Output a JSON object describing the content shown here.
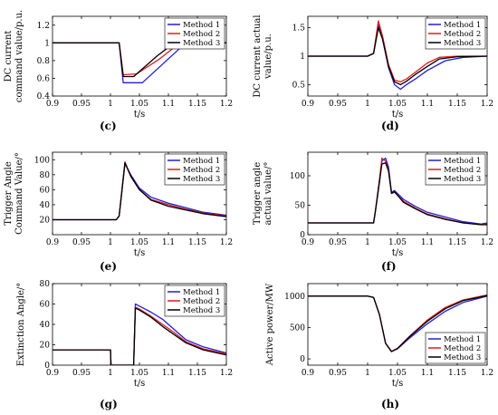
{
  "chart_data": [
    {
      "type": "line",
      "caption": "(c)",
      "ylabel": [
        "DC current",
        "command value/p.u."
      ],
      "xlabel": "t/s",
      "xlim": [
        0.9,
        1.2
      ],
      "ylim": [
        0.4,
        1.3
      ],
      "xticks": [
        "0.9",
        "0.95",
        "1",
        "1.05",
        "1.1",
        "1.15",
        "1.2"
      ],
      "yticks": [
        "0.4",
        "0.6",
        "0.8",
        "1",
        "1.2"
      ],
      "legend": "top-right",
      "series": [
        {
          "name": "Method 1",
          "color": "#1f1fd6",
          "x": [
            0.9,
            1.015,
            1.022,
            1.055,
            1.13,
            1.2
          ],
          "y": [
            1,
            1,
            0.55,
            0.55,
            1,
            1
          ]
        },
        {
          "name": "Method 2",
          "color": "#e01b1b",
          "x": [
            0.9,
            1.015,
            1.022,
            1.045,
            1.085,
            1.12,
            1.2
          ],
          "y": [
            1,
            1,
            0.64,
            0.65,
            0.82,
            1,
            1
          ]
        },
        {
          "name": "Method 3",
          "color": "#000000",
          "x": [
            0.9,
            1.015,
            1.022,
            1.04,
            1.08,
            1.11,
            1.2
          ],
          "y": [
            1,
            1,
            0.62,
            0.62,
            0.85,
            1,
            1
          ]
        }
      ]
    },
    {
      "type": "line",
      "caption": "(d)",
      "ylabel": [
        "DC current actual",
        "value/p.u."
      ],
      "xlabel": "t/s",
      "xlim": [
        0.9,
        1.2
      ],
      "ylim": [
        0.3,
        1.7
      ],
      "xticks": [
        "0.9",
        "0.95",
        "1",
        "1.05",
        "1.1",
        "1.15",
        "1.2"
      ],
      "yticks": [
        "0.5",
        "1",
        "1.5"
      ],
      "legend": "top-right",
      "series": [
        {
          "name": "Method 1",
          "color": "#1f1fd6",
          "x": [
            0.9,
            1.0,
            1.01,
            1.018,
            1.025,
            1.035,
            1.045,
            1.055,
            1.065,
            1.08,
            1.1,
            1.13,
            1.16,
            1.2
          ],
          "y": [
            1,
            1,
            1.05,
            1.55,
            1.3,
            0.8,
            0.5,
            0.42,
            0.5,
            0.6,
            0.75,
            0.92,
            0.98,
            1
          ]
        },
        {
          "name": "Method 2",
          "color": "#e01b1b",
          "x": [
            0.9,
            1.0,
            1.01,
            1.018,
            1.025,
            1.035,
            1.045,
            1.055,
            1.065,
            1.08,
            1.1,
            1.12,
            1.15,
            1.2
          ],
          "y": [
            1,
            1,
            1.05,
            1.62,
            1.35,
            0.85,
            0.58,
            0.55,
            0.6,
            0.72,
            0.88,
            0.98,
            1.0,
            1
          ]
        },
        {
          "name": "Method 3",
          "color": "#000000",
          "x": [
            0.9,
            1.0,
            1.01,
            1.018,
            1.025,
            1.035,
            1.045,
            1.055,
            1.065,
            1.08,
            1.1,
            1.12,
            1.15,
            1.2
          ],
          "y": [
            1,
            1,
            1.05,
            1.5,
            1.3,
            0.82,
            0.55,
            0.5,
            0.56,
            0.68,
            0.82,
            0.95,
            0.99,
            1
          ]
        }
      ]
    },
    {
      "type": "line",
      "caption": "(e)",
      "ylabel": [
        "Trigger Angle",
        "Command Value/°"
      ],
      "xlabel": "t/s",
      "xlim": [
        0.9,
        1.2
      ],
      "ylim": [
        0,
        110
      ],
      "xticks": [
        "0.9",
        "0.95",
        "1",
        "1.05",
        "1.1",
        "1.15",
        "1.2"
      ],
      "yticks": [
        "20",
        "40",
        "60",
        "80",
        "100"
      ],
      "legend": "top-right",
      "series": [
        {
          "name": "Method 1",
          "color": "#1f1fd6",
          "x": [
            0.9,
            1.01,
            1.015,
            1.02,
            1.025,
            1.035,
            1.05,
            1.07,
            1.1,
            1.13,
            1.16,
            1.2
          ],
          "y": [
            20,
            20,
            25,
            60,
            95,
            80,
            62,
            50,
            42,
            36,
            30,
            26
          ]
        },
        {
          "name": "Method 2",
          "color": "#e01b1b",
          "x": [
            0.9,
            1.01,
            1.015,
            1.02,
            1.025,
            1.035,
            1.05,
            1.07,
            1.1,
            1.13,
            1.16,
            1.2
          ],
          "y": [
            20,
            20,
            25,
            62,
            97,
            78,
            60,
            47,
            40,
            34,
            29,
            25
          ]
        },
        {
          "name": "Method 3",
          "color": "#000000",
          "x": [
            0.9,
            1.01,
            1.015,
            1.02,
            1.025,
            1.035,
            1.05,
            1.07,
            1.1,
            1.13,
            1.16,
            1.2
          ],
          "y": [
            20,
            20,
            25,
            60,
            96,
            78,
            60,
            46,
            38,
            33,
            28,
            24
          ]
        }
      ]
    },
    {
      "type": "line",
      "caption": "(f)",
      "ylabel": [
        "Trigger angle",
        "actual value/°"
      ],
      "xlabel": "t/s",
      "xlim": [
        0.9,
        1.2
      ],
      "ylim": [
        0,
        140
      ],
      "xticks": [
        "0.9",
        "0.95",
        "1",
        "1.05",
        "1.1",
        "1.15",
        "1.2"
      ],
      "yticks": [
        "0",
        "50",
        "100"
      ],
      "legend": "top-right",
      "series": [
        {
          "name": "Method 1",
          "color": "#1f1fd6",
          "x": [
            0.9,
            1.01,
            1.013,
            1.02,
            1.024,
            1.03,
            1.035,
            1.04,
            1.045,
            1.06,
            1.08,
            1.1,
            1.13,
            1.16,
            1.19,
            1.2
          ],
          "y": [
            20,
            20,
            40,
            90,
            125,
            130,
            115,
            72,
            75,
            60,
            48,
            38,
            30,
            22,
            18,
            20
          ]
        },
        {
          "name": "Method 2",
          "color": "#e01b1b",
          "x": [
            0.9,
            1.01,
            1.013,
            1.02,
            1.024,
            1.03,
            1.035,
            1.04,
            1.045,
            1.06,
            1.08,
            1.1,
            1.13,
            1.16,
            1.19,
            1.2
          ],
          "y": [
            20,
            20,
            40,
            95,
            130,
            125,
            110,
            70,
            72,
            57,
            45,
            35,
            27,
            20,
            17,
            18
          ]
        },
        {
          "name": "Method 3",
          "color": "#000000",
          "x": [
            0.9,
            1.01,
            1.013,
            1.02,
            1.024,
            1.03,
            1.035,
            1.04,
            1.045,
            1.06,
            1.08,
            1.1,
            1.13,
            1.16,
            1.19,
            1.2
          ],
          "y": [
            20,
            20,
            40,
            92,
            120,
            122,
            108,
            70,
            73,
            55,
            44,
            34,
            26,
            20,
            17,
            17
          ]
        }
      ]
    },
    {
      "type": "line",
      "caption": "(g)",
      "ylabel": [
        "Extinction Angle/°"
      ],
      "xlabel": "t/s",
      "xlim": [
        0.9,
        1.2
      ],
      "ylim": [
        0,
        80
      ],
      "xticks": [
        "0.9",
        "0.95",
        "1",
        "1.05",
        "1.1",
        "1.15",
        "1.2"
      ],
      "yticks": [
        "0",
        "20",
        "40",
        "60",
        "80"
      ],
      "legend": "top-right",
      "series": [
        {
          "name": "Method 1",
          "color": "#1f1fd6",
          "x": [
            0.9,
            1.0,
            1.001,
            1.04,
            1.043,
            1.05,
            1.07,
            1.09,
            1.11,
            1.13,
            1.16,
            1.2
          ],
          "y": [
            15,
            15,
            0,
            0,
            60,
            58,
            52,
            45,
            35,
            25,
            18,
            12
          ]
        },
        {
          "name": "Method 2",
          "color": "#e01b1b",
          "x": [
            0.9,
            1.0,
            1.001,
            1.04,
            1.043,
            1.05,
            1.07,
            1.09,
            1.11,
            1.13,
            1.16,
            1.2
          ],
          "y": [
            15,
            15,
            0,
            0,
            57,
            55,
            48,
            40,
            32,
            23,
            16,
            11
          ]
        },
        {
          "name": "Method 3",
          "color": "#000000",
          "x": [
            0.9,
            1.0,
            1.001,
            1.04,
            1.043,
            1.05,
            1.07,
            1.09,
            1.11,
            1.13,
            1.16,
            1.2
          ],
          "y": [
            15,
            15,
            0,
            0,
            56,
            54,
            47,
            38,
            30,
            22,
            15,
            10
          ]
        }
      ]
    },
    {
      "type": "line",
      "caption": "(h)",
      "ylabel": [
        "Active power/MW"
      ],
      "xlabel": "t/s",
      "xlim": [
        0.9,
        1.2
      ],
      "ylim": [
        -100,
        1200
      ],
      "xticks": [
        "0.9",
        "0.95",
        "1",
        "1.05",
        "1.1",
        "1.15",
        "1.2"
      ],
      "yticks": [
        "0",
        "500",
        "1000"
      ],
      "legend": "bottom-right",
      "series": [
        {
          "name": "Method 1",
          "color": "#1f1fd6",
          "x": [
            0.9,
            1.0,
            1.01,
            1.02,
            1.03,
            1.04,
            1.05,
            1.07,
            1.1,
            1.13,
            1.16,
            1.2
          ],
          "y": [
            1000,
            1000,
            980,
            700,
            250,
            120,
            160,
            330,
            560,
            760,
            900,
            1000
          ]
        },
        {
          "name": "Method 2",
          "color": "#e01b1b",
          "x": [
            0.9,
            1.0,
            1.01,
            1.02,
            1.03,
            1.04,
            1.05,
            1.07,
            1.1,
            1.13,
            1.16,
            1.2
          ],
          "y": [
            1000,
            1000,
            980,
            700,
            250,
            120,
            170,
            360,
            620,
            820,
            940,
            1020
          ]
        },
        {
          "name": "Method 3",
          "color": "#000000",
          "x": [
            0.9,
            1.0,
            1.01,
            1.02,
            1.03,
            1.04,
            1.05,
            1.07,
            1.1,
            1.13,
            1.16,
            1.2
          ],
          "y": [
            1000,
            1000,
            980,
            700,
            250,
            115,
            165,
            350,
            600,
            800,
            930,
            1010
          ]
        }
      ]
    }
  ]
}
